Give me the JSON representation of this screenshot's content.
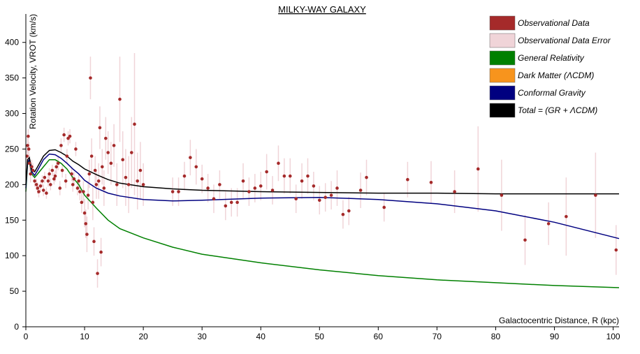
{
  "chart_data": {
    "type": "scatter",
    "title": "MILKY-WAY GALAXY",
    "xlabel": "Galactocentric Distance, R (kpc)",
    "ylabel": "Rotation Velocity, VROT (km/s)",
    "xlim": [
      0,
      101
    ],
    "ylim": [
      0,
      440
    ],
    "xticks": [
      0,
      10,
      20,
      30,
      40,
      50,
      60,
      70,
      80,
      90,
      100
    ],
    "yticks": [
      0,
      50,
      100,
      150,
      200,
      250,
      300,
      350,
      400
    ],
    "grid": false,
    "legend_position": "top-right",
    "legend": [
      {
        "name": "Observational Data",
        "color": "#a52a2a"
      },
      {
        "name": "Observational Data Error",
        "color": "#f0d4d8"
      },
      {
        "name": "General Relativity",
        "color": "#008000"
      },
      {
        "name": "Dark Matter (ΛCDM)",
        "color": "#f7941d"
      },
      {
        "name": "Conformal Gravity",
        "color": "#000080"
      },
      {
        "name": "Total = (GR + ΛCDM)",
        "color": "#000000"
      }
    ],
    "series": [
      {
        "name": "Observational Data",
        "kind": "points",
        "color": "#a52a2a",
        "points": [
          [
            0.2,
            240,
            15
          ],
          [
            0.3,
            255,
            12
          ],
          [
            0.4,
            268,
            10
          ],
          [
            0.5,
            250,
            10
          ],
          [
            0.6,
            230,
            12
          ],
          [
            0.8,
            215,
            12
          ],
          [
            1.0,
            225,
            10
          ],
          [
            1.2,
            220,
            10
          ],
          [
            1.5,
            205,
            8
          ],
          [
            1.8,
            200,
            8
          ],
          [
            2.0,
            195,
            8
          ],
          [
            2.2,
            190,
            8
          ],
          [
            2.5,
            198,
            8
          ],
          [
            2.8,
            205,
            8
          ],
          [
            3.0,
            192,
            8
          ],
          [
            3.2,
            210,
            8
          ],
          [
            3.5,
            188,
            8
          ],
          [
            3.8,
            205,
            8
          ],
          [
            4.0,
            215,
            8
          ],
          [
            4.2,
            200,
            8
          ],
          [
            4.5,
            220,
            8
          ],
          [
            4.8,
            208,
            8
          ],
          [
            5.0,
            212,
            8
          ],
          [
            5.2,
            225,
            10
          ],
          [
            5.5,
            230,
            10
          ],
          [
            5.8,
            195,
            10
          ],
          [
            6.0,
            255,
            10
          ],
          [
            6.2,
            220,
            10
          ],
          [
            6.5,
            270,
            10
          ],
          [
            6.8,
            205,
            10
          ],
          [
            7.0,
            240,
            10
          ],
          [
            7.2,
            265,
            10
          ],
          [
            7.5,
            268,
            10
          ],
          [
            7.8,
            215,
            10
          ],
          [
            8.0,
            200,
            10
          ],
          [
            8.2,
            208,
            10
          ],
          [
            8.5,
            250,
            10
          ],
          [
            8.8,
            195,
            10
          ],
          [
            9.0,
            205,
            10
          ],
          [
            9.2,
            190,
            12
          ],
          [
            9.5,
            175,
            15
          ],
          [
            9.8,
            190,
            15
          ],
          [
            10.0,
            160,
            20
          ],
          [
            10.2,
            145,
            20
          ],
          [
            10.4,
            130,
            25
          ],
          [
            10.6,
            185,
            20
          ],
          [
            10.8,
            215,
            20
          ],
          [
            11.0,
            350,
            30
          ],
          [
            11.2,
            240,
            25
          ],
          [
            11.4,
            175,
            25
          ],
          [
            11.6,
            120,
            20
          ],
          [
            11.8,
            220,
            20
          ],
          [
            12.0,
            200,
            20
          ],
          [
            12.2,
            75,
            20
          ],
          [
            12.4,
            205,
            25
          ],
          [
            12.6,
            280,
            30
          ],
          [
            12.8,
            105,
            20
          ],
          [
            13.0,
            225,
            25
          ],
          [
            13.3,
            195,
            25
          ],
          [
            13.6,
            265,
            30
          ],
          [
            14.0,
            245,
            30
          ],
          [
            14.5,
            230,
            30
          ],
          [
            15.0,
            255,
            30
          ],
          [
            15.5,
            200,
            30
          ],
          [
            16.0,
            320,
            60
          ],
          [
            16.5,
            235,
            40
          ],
          [
            17.0,
            210,
            40
          ],
          [
            17.5,
            200,
            40
          ],
          [
            18.0,
            245,
            50
          ],
          [
            18.5,
            285,
            100
          ],
          [
            19.0,
            205,
            40
          ],
          [
            19.5,
            220,
            40
          ],
          [
            20.0,
            200,
            30
          ],
          [
            25.0,
            190,
            20
          ],
          [
            26.0,
            190,
            20
          ],
          [
            27.0,
            212,
            20
          ],
          [
            28.0,
            238,
            25
          ],
          [
            29.0,
            225,
            25
          ],
          [
            30.0,
            208,
            20
          ],
          [
            31.0,
            195,
            20
          ],
          [
            32.0,
            180,
            20
          ],
          [
            33.0,
            200,
            20
          ],
          [
            34.0,
            170,
            20
          ],
          [
            35.0,
            175,
            20
          ],
          [
            36.0,
            175,
            20
          ],
          [
            37.0,
            205,
            25
          ],
          [
            38.0,
            190,
            20
          ],
          [
            39.0,
            195,
            20
          ],
          [
            40.0,
            198,
            20
          ],
          [
            41.0,
            218,
            25
          ],
          [
            42.0,
            192,
            20
          ],
          [
            43.0,
            230,
            25
          ],
          [
            44.0,
            212,
            25
          ],
          [
            45.0,
            212,
            25
          ],
          [
            46.0,
            180,
            20
          ],
          [
            47.0,
            205,
            25
          ],
          [
            48.0,
            212,
            25
          ],
          [
            49.0,
            198,
            20
          ],
          [
            50.0,
            178,
            20
          ],
          [
            51.0,
            182,
            20
          ],
          [
            52.0,
            185,
            20
          ],
          [
            53.0,
            195,
            25
          ],
          [
            54.0,
            158,
            20
          ],
          [
            55.0,
            163,
            20
          ],
          [
            57.0,
            192,
            25
          ],
          [
            58.0,
            210,
            25
          ],
          [
            61.0,
            168,
            20
          ],
          [
            65.0,
            207,
            25
          ],
          [
            69.0,
            203,
            30
          ],
          [
            73.0,
            190,
            30
          ],
          [
            77.0,
            222,
            60
          ],
          [
            81.0,
            185,
            50
          ],
          [
            85.0,
            122,
            35
          ],
          [
            89.0,
            145,
            30
          ],
          [
            92.0,
            155,
            55
          ],
          [
            97.0,
            185,
            60
          ],
          [
            100.5,
            108,
            35
          ]
        ]
      },
      {
        "name": "General Relativity",
        "kind": "line",
        "color": "#008000",
        "points": [
          [
            0,
            190
          ],
          [
            0.3,
            230
          ],
          [
            0.6,
            233
          ],
          [
            1.0,
            215
          ],
          [
            1.5,
            210
          ],
          [
            2.0,
            215
          ],
          [
            3.0,
            225
          ],
          [
            4.0,
            235
          ],
          [
            5.0,
            235
          ],
          [
            6.0,
            230
          ],
          [
            7.0,
            222
          ],
          [
            8.0,
            210
          ],
          [
            9.0,
            200
          ],
          [
            10.0,
            185
          ],
          [
            12.0,
            167
          ],
          [
            14.0,
            150
          ],
          [
            16.0,
            138
          ],
          [
            20.0,
            125
          ],
          [
            25.0,
            112
          ],
          [
            30.0,
            102
          ],
          [
            40.0,
            90
          ],
          [
            50.0,
            80
          ],
          [
            60.0,
            72
          ],
          [
            70.0,
            66
          ],
          [
            80.0,
            62
          ],
          [
            90.0,
            58
          ],
          [
            101.0,
            55
          ]
        ]
      },
      {
        "name": "Conformal Gravity",
        "kind": "line",
        "color": "#000080",
        "points": [
          [
            0,
            195
          ],
          [
            0.3,
            232
          ],
          [
            0.6,
            235
          ],
          [
            1.0,
            218
          ],
          [
            1.5,
            213
          ],
          [
            2.0,
            220
          ],
          [
            3.0,
            235
          ],
          [
            4.0,
            243
          ],
          [
            5.0,
            242
          ],
          [
            6.0,
            237
          ],
          [
            7.0,
            230
          ],
          [
            8.0,
            222
          ],
          [
            9.0,
            215
          ],
          [
            10.0,
            206
          ],
          [
            12.0,
            195
          ],
          [
            14.0,
            188
          ],
          [
            16.0,
            184
          ],
          [
            20.0,
            179
          ],
          [
            25.0,
            177
          ],
          [
            30.0,
            178
          ],
          [
            40.0,
            181
          ],
          [
            50.0,
            182
          ],
          [
            60.0,
            179
          ],
          [
            70.0,
            173
          ],
          [
            80.0,
            163
          ],
          [
            90.0,
            147
          ],
          [
            101.0,
            124
          ]
        ]
      },
      {
        "name": "Total = (GR + ΛCDM)",
        "kind": "line",
        "color": "#000000",
        "points": [
          [
            0,
            200
          ],
          [
            0.3,
            235
          ],
          [
            0.6,
            238
          ],
          [
            1.0,
            222
          ],
          [
            1.5,
            218
          ],
          [
            2.0,
            225
          ],
          [
            3.0,
            240
          ],
          [
            4.0,
            248
          ],
          [
            5.0,
            249
          ],
          [
            6.0,
            245
          ],
          [
            7.0,
            240
          ],
          [
            8.0,
            233
          ],
          [
            9.0,
            228
          ],
          [
            10.0,
            222
          ],
          [
            12.0,
            214
          ],
          [
            14.0,
            207
          ],
          [
            16.0,
            202
          ],
          [
            20.0,
            197
          ],
          [
            25.0,
            194
          ],
          [
            30.0,
            192
          ],
          [
            40.0,
            190
          ],
          [
            50.0,
            189
          ],
          [
            60.0,
            188
          ],
          [
            70.0,
            188
          ],
          [
            80.0,
            187
          ],
          [
            90.0,
            187
          ],
          [
            101.0,
            187
          ]
        ]
      }
    ]
  }
}
